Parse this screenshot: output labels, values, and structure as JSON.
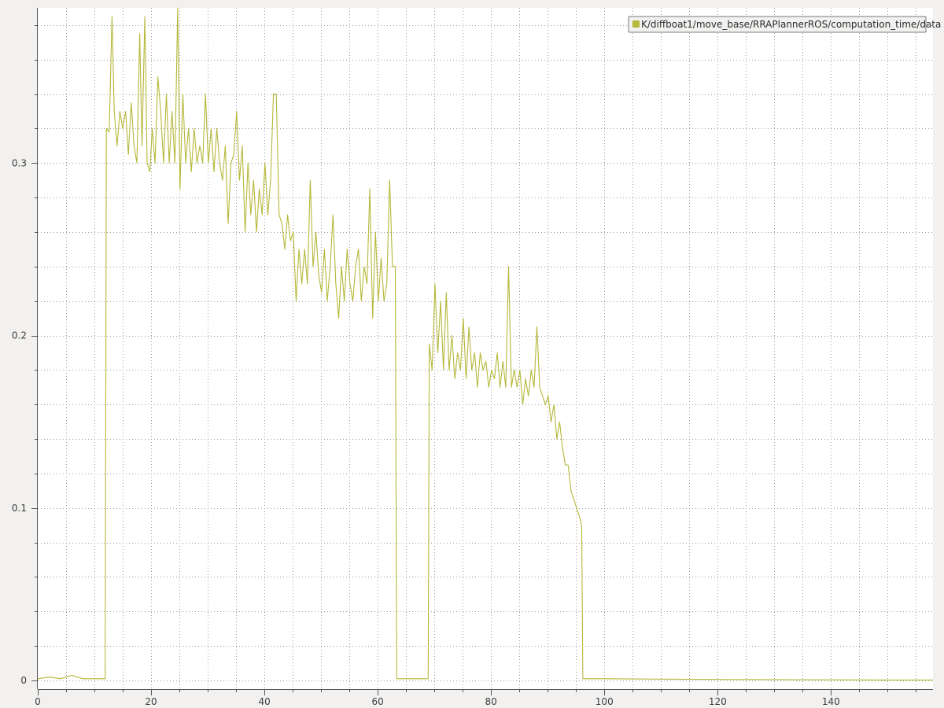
{
  "chart_data": {
    "type": "line",
    "xlim": [
      0,
      158
    ],
    "ylim": [
      -0.005,
      0.39
    ],
    "x_ticks": [
      0,
      20,
      40,
      60,
      80,
      100,
      120,
      140
    ],
    "x_minor_ticks": [
      5,
      10,
      15,
      25,
      30,
      35,
      45,
      50,
      55,
      65,
      70,
      75,
      85,
      90,
      95,
      105,
      110,
      115,
      125,
      130,
      135,
      145,
      150,
      155
    ],
    "y_ticks": [
      0,
      0.1,
      0.2,
      0.3
    ],
    "y_tick_labels": [
      "0",
      "0.1",
      "0.2",
      "0.3"
    ],
    "grid": true,
    "legend_position": "top-right",
    "series": [
      {
        "name": "K/diffboat1/move_base/RRAPlannerROS/computation_time/data",
        "color": "#b5b83a",
        "points": [
          [
            0,
            0.001
          ],
          [
            2,
            0.002
          ],
          [
            4,
            0.001
          ],
          [
            6,
            0.003
          ],
          [
            8,
            0.001
          ],
          [
            10,
            0.001
          ],
          [
            11.9,
            0.001
          ],
          [
            12.1,
            0.32
          ],
          [
            12.6,
            0.318
          ],
          [
            13.1,
            0.385
          ],
          [
            13.5,
            0.33
          ],
          [
            14.0,
            0.31
          ],
          [
            14.5,
            0.33
          ],
          [
            15.0,
            0.32
          ],
          [
            15.5,
            0.33
          ],
          [
            16.0,
            0.305
          ],
          [
            16.5,
            0.335
          ],
          [
            17.0,
            0.31
          ],
          [
            17.5,
            0.3
          ],
          [
            18.0,
            0.375
          ],
          [
            18.4,
            0.31
          ],
          [
            18.9,
            0.385
          ],
          [
            19.3,
            0.3
          ],
          [
            19.8,
            0.295
          ],
          [
            20.2,
            0.32
          ],
          [
            20.7,
            0.3
          ],
          [
            21.2,
            0.35
          ],
          [
            21.7,
            0.33
          ],
          [
            22.2,
            0.3
          ],
          [
            22.7,
            0.34
          ],
          [
            23.2,
            0.3
          ],
          [
            23.7,
            0.33
          ],
          [
            24.2,
            0.3
          ],
          [
            24.7,
            0.39
          ],
          [
            25.1,
            0.285
          ],
          [
            25.6,
            0.34
          ],
          [
            26.1,
            0.3
          ],
          [
            26.6,
            0.32
          ],
          [
            27.1,
            0.295
          ],
          [
            27.6,
            0.32
          ],
          [
            28.1,
            0.3
          ],
          [
            28.6,
            0.31
          ],
          [
            29.1,
            0.3
          ],
          [
            29.6,
            0.34
          ],
          [
            30.1,
            0.3
          ],
          [
            30.6,
            0.32
          ],
          [
            31.1,
            0.295
          ],
          [
            31.6,
            0.32
          ],
          [
            32.1,
            0.3
          ],
          [
            32.6,
            0.29
          ],
          [
            33.1,
            0.31
          ],
          [
            33.6,
            0.265
          ],
          [
            34.1,
            0.3
          ],
          [
            34.6,
            0.305
          ],
          [
            35.1,
            0.33
          ],
          [
            35.6,
            0.29
          ],
          [
            36.1,
            0.31
          ],
          [
            36.6,
            0.26
          ],
          [
            37.1,
            0.3
          ],
          [
            37.6,
            0.27
          ],
          [
            38.1,
            0.29
          ],
          [
            38.6,
            0.26
          ],
          [
            39.1,
            0.285
          ],
          [
            39.6,
            0.27
          ],
          [
            40.1,
            0.3
          ],
          [
            40.6,
            0.27
          ],
          [
            41.1,
            0.29
          ],
          [
            41.6,
            0.34
          ],
          [
            42.1,
            0.34
          ],
          [
            42.6,
            0.27
          ],
          [
            43.1,
            0.265
          ],
          [
            43.6,
            0.25
          ],
          [
            44.1,
            0.27
          ],
          [
            44.6,
            0.255
          ],
          [
            45.1,
            0.26
          ],
          [
            45.6,
            0.22
          ],
          [
            46.1,
            0.25
          ],
          [
            46.6,
            0.23
          ],
          [
            47.1,
            0.25
          ],
          [
            47.6,
            0.23
          ],
          [
            48.1,
            0.29
          ],
          [
            48.6,
            0.24
          ],
          [
            49.1,
            0.26
          ],
          [
            49.6,
            0.235
          ],
          [
            50.1,
            0.225
          ],
          [
            50.6,
            0.25
          ],
          [
            51.1,
            0.22
          ],
          [
            51.6,
            0.24
          ],
          [
            52.1,
            0.27
          ],
          [
            52.6,
            0.23
          ],
          [
            53.1,
            0.21
          ],
          [
            53.6,
            0.24
          ],
          [
            54.1,
            0.22
          ],
          [
            54.6,
            0.25
          ],
          [
            55.1,
            0.23
          ],
          [
            55.6,
            0.22
          ],
          [
            56.1,
            0.24
          ],
          [
            56.6,
            0.25
          ],
          [
            57.1,
            0.22
          ],
          [
            57.6,
            0.24
          ],
          [
            58.1,
            0.23
          ],
          [
            58.6,
            0.285
          ],
          [
            59.1,
            0.21
          ],
          [
            59.6,
            0.26
          ],
          [
            60.1,
            0.22
          ],
          [
            60.6,
            0.245
          ],
          [
            61.1,
            0.22
          ],
          [
            61.6,
            0.23
          ],
          [
            62.1,
            0.29
          ],
          [
            62.6,
            0.24
          ],
          [
            63.1,
            0.24
          ],
          [
            63.35,
            0.001
          ],
          [
            65,
            0.001
          ],
          [
            67,
            0.001
          ],
          [
            68.9,
            0.001
          ],
          [
            69.1,
            0.195
          ],
          [
            69.6,
            0.18
          ],
          [
            70.1,
            0.23
          ],
          [
            70.6,
            0.19
          ],
          [
            71.1,
            0.22
          ],
          [
            71.6,
            0.18
          ],
          [
            72.1,
            0.225
          ],
          [
            72.6,
            0.18
          ],
          [
            73.1,
            0.2
          ],
          [
            73.6,
            0.175
          ],
          [
            74.1,
            0.19
          ],
          [
            74.6,
            0.18
          ],
          [
            75.1,
            0.21
          ],
          [
            75.6,
            0.175
          ],
          [
            76.1,
            0.205
          ],
          [
            76.6,
            0.18
          ],
          [
            77.1,
            0.19
          ],
          [
            77.6,
            0.17
          ],
          [
            78.1,
            0.19
          ],
          [
            78.6,
            0.18
          ],
          [
            79.1,
            0.185
          ],
          [
            79.6,
            0.17
          ],
          [
            80.1,
            0.18
          ],
          [
            80.6,
            0.175
          ],
          [
            81.1,
            0.19
          ],
          [
            81.6,
            0.17
          ],
          [
            82.1,
            0.185
          ],
          [
            82.6,
            0.17
          ],
          [
            83.1,
            0.24
          ],
          [
            83.6,
            0.17
          ],
          [
            84.1,
            0.18
          ],
          [
            84.6,
            0.17
          ],
          [
            85.1,
            0.18
          ],
          [
            85.6,
            0.16
          ],
          [
            86.1,
            0.175
          ],
          [
            86.6,
            0.165
          ],
          [
            87.1,
            0.18
          ],
          [
            87.6,
            0.17
          ],
          [
            88.1,
            0.205
          ],
          [
            88.6,
            0.17
          ],
          [
            89.1,
            0.165
          ],
          [
            89.6,
            0.16
          ],
          [
            90.1,
            0.165
          ],
          [
            90.6,
            0.15
          ],
          [
            91.1,
            0.16
          ],
          [
            91.6,
            0.14
          ],
          [
            92.1,
            0.15
          ],
          [
            92.6,
            0.135
          ],
          [
            93.1,
            0.125
          ],
          [
            93.6,
            0.125
          ],
          [
            94.1,
            0.11
          ],
          [
            94.6,
            0.105
          ],
          [
            95.1,
            0.1
          ],
          [
            95.6,
            0.095
          ],
          [
            96.0,
            0.09
          ],
          [
            96.2,
            0.001
          ],
          [
            100,
            0.001
          ],
          [
            110,
            0.0008
          ],
          [
            120,
            0.0006
          ],
          [
            130,
            0.0005
          ],
          [
            140,
            0.0004
          ],
          [
            150,
            0.0003
          ],
          [
            158,
            0.0003
          ]
        ]
      }
    ]
  }
}
